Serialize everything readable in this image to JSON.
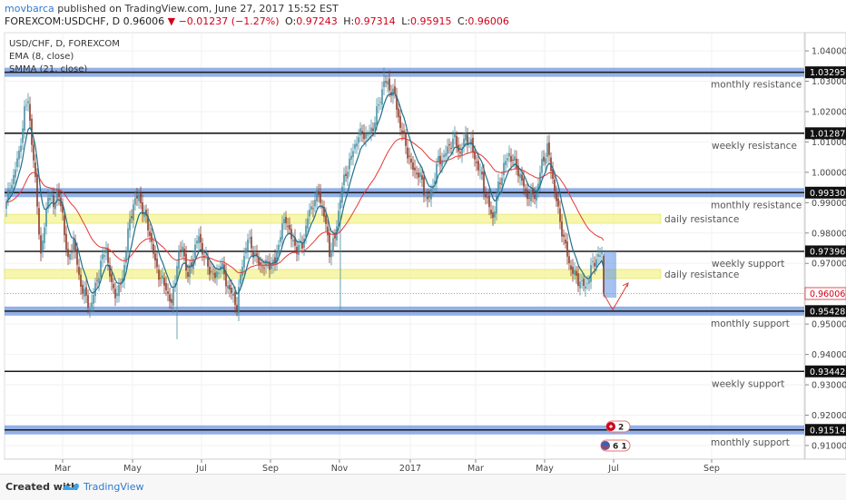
{
  "header": {
    "author": "movbarca",
    "published": "published on TradingView.com, June 27, 2017 15:52 EST",
    "symbol": "FOREXCOM:USDCHF, D",
    "last": "0.96006",
    "change": "−0.01237 (−1.27%)",
    "open_label": "O:",
    "open": "0.97243",
    "high_label": "H:",
    "high": "0.97314",
    "low_label": "L:",
    "low": "0.95915",
    "close_label": "C:",
    "close": "0.96006"
  },
  "legend": {
    "instrument": "USD/CHF, D, FOREXCOM",
    "ema": "EMA (8, close)",
    "smma": "SMMA (21, close)"
  },
  "footer": {
    "created_with": "Created with",
    "brand": "TradingView"
  },
  "colors": {
    "up": "#4a90a4",
    "down": "#8b3a2a",
    "ema": "#1f6f8b",
    "smma": "#e53935",
    "monthly_band": "#6f95df",
    "daily_band": "#f4f28a",
    "label_text": "#555555"
  },
  "chart_data": {
    "type": "candlestick",
    "x_ticks": [
      "Mar",
      "May",
      "Jul",
      "Sep",
      "Nov",
      "2017",
      "Mar",
      "May",
      "Jul",
      "Sep"
    ],
    "y_ticks": [
      "1.04000",
      "1.03000",
      "1.02000",
      "1.01000",
      "1.00000",
      "0.99000",
      "0.98000",
      "0.97000",
      "0.96000",
      "0.95000",
      "0.94000",
      "0.93000",
      "0.92000",
      "0.91000"
    ],
    "ylim": [
      0.9055,
      1.046
    ],
    "levels": [
      {
        "price": 1.03295,
        "label": "monthly resistance",
        "style": "monthly",
        "tag": "1.03295"
      },
      {
        "price": 1.01287,
        "label": "weekly resistance",
        "style": "weekly",
        "tag": "1.01287"
      },
      {
        "price": 0.9933,
        "label": "monthly resistance",
        "style": "monthly",
        "tag": "0.99330"
      },
      {
        "price": 0.9847,
        "label": "daily resistance",
        "style": "daily"
      },
      {
        "price": 0.97396,
        "label": "weekly support",
        "style": "weekly",
        "tag": "0.97396"
      },
      {
        "price": 0.9665,
        "label": "daily resistance",
        "style": "daily"
      },
      {
        "price": 0.95428,
        "label": "monthly support",
        "style": "monthly",
        "tag": "0.95428"
      },
      {
        "price": 0.93442,
        "label": "weekly support",
        "style": "weekly",
        "tag": "0.93442"
      },
      {
        "price": 0.91514,
        "label": "monthly support",
        "style": "monthly",
        "tag": "0.91514"
      }
    ],
    "last_price": {
      "price": 0.96006,
      "tag": "0.96006"
    },
    "events": [
      {
        "label": "2"
      },
      {
        "label": "6 1"
      }
    ],
    "anchors": [
      [
        0,
        0.99
      ],
      [
        4,
        0.999
      ],
      [
        7,
        1.006
      ],
      [
        10,
        1.02
      ],
      [
        12,
        1.024
      ],
      [
        14,
        1.01
      ],
      [
        17,
        0.99
      ],
      [
        19,
        0.972
      ],
      [
        21,
        0.982
      ],
      [
        23,
        0.993
      ],
      [
        26,
        0.989
      ],
      [
        28,
        0.994
      ],
      [
        31,
        0.986
      ],
      [
        34,
        0.97
      ],
      [
        37,
        0.978
      ],
      [
        40,
        0.965
      ],
      [
        43,
        0.96
      ],
      [
        46,
        0.955
      ],
      [
        49,
        0.962
      ],
      [
        52,
        0.97
      ],
      [
        55,
        0.975
      ],
      [
        58,
        0.962
      ],
      [
        61,
        0.96
      ],
      [
        64,
        0.965
      ],
      [
        67,
        0.98
      ],
      [
        70,
        0.99
      ],
      [
        73,
        0.992
      ],
      [
        76,
        0.986
      ],
      [
        79,
        0.98
      ],
      [
        82,
        0.97
      ],
      [
        85,
        0.965
      ],
      [
        88,
        0.962
      ],
      [
        91,
        0.956
      ],
      [
        94,
        0.97
      ],
      [
        97,
        0.976
      ],
      [
        100,
        0.965
      ],
      [
        103,
        0.973
      ],
      [
        106,
        0.979
      ],
      [
        109,
        0.972
      ],
      [
        112,
        0.968
      ],
      [
        115,
        0.965
      ],
      [
        118,
        0.97
      ],
      [
        121,
        0.964
      ],
      [
        124,
        0.96
      ],
      [
        127,
        0.956
      ],
      [
        130,
        0.97
      ],
      [
        133,
        0.978
      ],
      [
        136,
        0.974
      ],
      [
        139,
        0.97
      ],
      [
        142,
        0.969
      ],
      [
        145,
        0.97
      ],
      [
        148,
        0.97
      ],
      [
        151,
        0.98
      ],
      [
        154,
        0.985
      ],
      [
        157,
        0.978
      ],
      [
        160,
        0.975
      ],
      [
        163,
        0.976
      ],
      [
        166,
        0.985
      ],
      [
        169,
        0.99
      ],
      [
        172,
        0.993
      ],
      [
        175,
        0.986
      ],
      [
        178,
        0.974
      ],
      [
        181,
        0.978
      ],
      [
        184,
        0.992
      ],
      [
        187,
        1.0
      ],
      [
        190,
        1.005
      ],
      [
        193,
        1.011
      ],
      [
        196,
        1.013
      ],
      [
        199,
        1.012
      ],
      [
        202,
        1.015
      ],
      [
        205,
        1.022
      ],
      [
        208,
        1.03
      ],
      [
        211,
        1.028
      ],
      [
        214,
        1.025
      ],
      [
        217,
        1.015
      ],
      [
        220,
        1.009
      ],
      [
        223,
        1.002
      ],
      [
        226,
        1.0
      ],
      [
        229,
        0.997
      ],
      [
        232,
        0.99
      ],
      [
        235,
        0.996
      ],
      [
        238,
        1.004
      ],
      [
        241,
        1.005
      ],
      [
        244,
        1.009
      ],
      [
        247,
        1.011
      ],
      [
        250,
        1.006
      ],
      [
        253,
        1.012
      ],
      [
        256,
        1.009
      ],
      [
        259,
        1.003
      ],
      [
        262,
        0.998
      ],
      [
        265,
        0.99
      ],
      [
        268,
        0.985
      ],
      [
        271,
        0.995
      ],
      [
        274,
        1.002
      ],
      [
        277,
        1.006
      ],
      [
        280,
        1.003
      ],
      [
        283,
        0.999
      ],
      [
        286,
        0.993
      ],
      [
        289,
        0.992
      ],
      [
        292,
        0.993
      ],
      [
        295,
        1.003
      ],
      [
        298,
        1.008
      ],
      [
        301,
        0.998
      ],
      [
        304,
        0.987
      ],
      [
        307,
        0.978
      ],
      [
        310,
        0.97
      ],
      [
        313,
        0.966
      ],
      [
        316,
        0.964
      ],
      [
        319,
        0.962
      ],
      [
        322,
        0.968
      ],
      [
        325,
        0.972
      ],
      [
        328,
        0.973
      ],
      [
        329,
        0.96
      ]
    ]
  }
}
